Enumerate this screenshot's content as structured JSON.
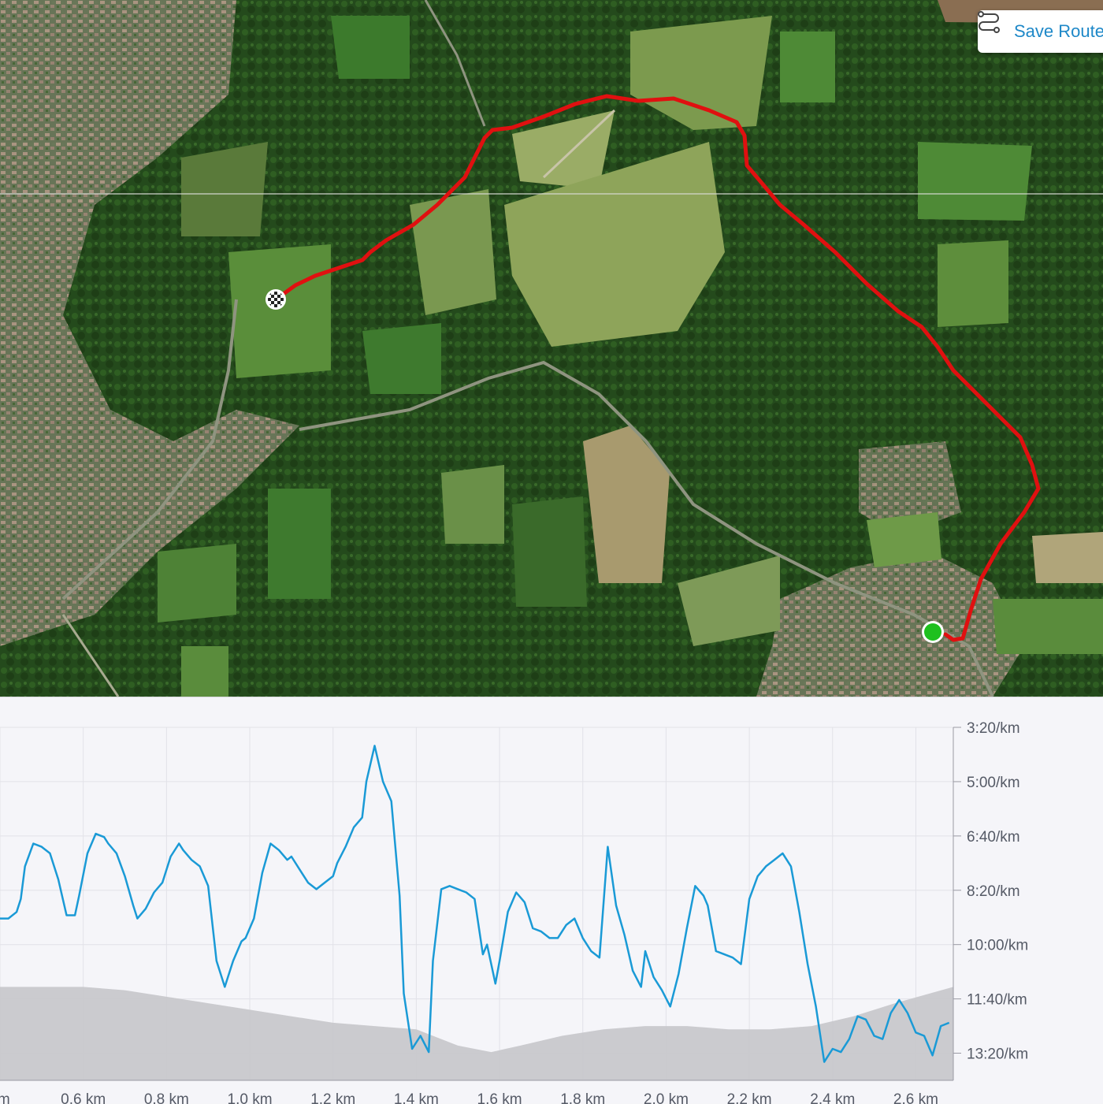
{
  "toolbar": {
    "save_route_label": "Save Route",
    "save_route_icon": "route-icon"
  },
  "map": {
    "marker_finish_icon": "checkered-flag-icon",
    "marker_start_icon": "start-dot-icon",
    "route_color": "#e01010",
    "start_color": "#1ec01e"
  },
  "chart_data": {
    "type": "area",
    "x_unit": "km",
    "x_tick_labels": [
      "km",
      "0.6 km",
      "0.8 km",
      "1.0 km",
      "1.2 km",
      "1.4 km",
      "1.6 km",
      "1.8 km",
      "2.0 km",
      "2.2 km",
      "2.4 km",
      "2.6 km"
    ],
    "x_ticks": [
      0.4,
      0.6,
      0.8,
      1.0,
      1.2,
      1.4,
      1.6,
      1.8,
      2.0,
      2.2,
      2.4,
      2.6
    ],
    "xlim": [
      0.4,
      2.69
    ],
    "y_tick_labels": [
      "3:20/km",
      "5:00/km",
      "6:40/km",
      "8:20/km",
      "10:00/km",
      "11:40/km",
      "13:20/km"
    ],
    "y_ticks_min_per_km": [
      3.333,
      5.0,
      6.667,
      8.333,
      10.0,
      11.667,
      13.333
    ],
    "ylim_min_per_km": [
      3.333,
      14.167
    ],
    "y_inverted": true,
    "pace_color": "#1a9ad6",
    "elevation_color": "#c8c8cc",
    "series": [
      {
        "kind": "pace",
        "x": [
          0.4,
          0.42,
          0.44,
          0.45,
          0.46,
          0.48,
          0.5,
          0.52,
          0.54,
          0.56,
          0.58,
          0.59,
          0.61,
          0.63,
          0.65,
          0.66,
          0.68,
          0.7,
          0.72,
          0.73,
          0.75,
          0.77,
          0.79,
          0.81,
          0.83,
          0.84,
          0.86,
          0.88,
          0.9,
          0.92,
          0.94,
          0.96,
          0.98,
          0.99,
          1.01,
          1.03,
          1.05,
          1.07,
          1.09,
          1.1,
          1.12,
          1.14,
          1.16,
          1.18,
          1.2,
          1.21,
          1.23,
          1.25,
          1.27,
          1.28,
          1.3,
          1.32,
          1.34,
          1.36,
          1.37,
          1.39,
          1.41,
          1.43,
          1.44,
          1.46,
          1.48,
          1.5,
          1.52,
          1.54,
          1.56,
          1.57,
          1.59,
          1.6,
          1.62,
          1.64,
          1.66,
          1.68,
          1.7,
          1.72,
          1.74,
          1.76,
          1.78,
          1.8,
          1.82,
          1.84,
          1.86,
          1.88,
          1.9,
          1.92,
          1.94,
          1.95,
          1.97,
          1.99,
          2.01,
          2.03,
          2.05,
          2.07,
          2.09,
          2.1,
          2.12,
          2.14,
          2.16,
          2.18,
          2.2,
          2.22,
          2.24,
          2.26,
          2.28,
          2.3,
          2.32,
          2.34,
          2.36,
          2.38,
          2.4,
          2.42,
          2.44,
          2.46,
          2.48,
          2.5,
          2.52,
          2.54,
          2.56,
          2.58,
          2.6,
          2.62,
          2.64,
          2.66,
          2.68
        ],
        "y": [
          9.2,
          9.2,
          9.0,
          8.6,
          7.6,
          6.9,
          7.0,
          7.2,
          8.0,
          9.1,
          9.1,
          8.5,
          7.2,
          6.6,
          6.7,
          6.9,
          7.2,
          7.9,
          8.8,
          9.2,
          8.9,
          8.4,
          8.1,
          7.3,
          6.9,
          7.1,
          7.4,
          7.6,
          8.2,
          10.5,
          11.3,
          10.5,
          9.9,
          9.8,
          9.2,
          7.8,
          6.9,
          7.1,
          7.4,
          7.3,
          7.7,
          8.1,
          8.3,
          8.1,
          7.9,
          7.5,
          7.0,
          6.4,
          6.1,
          5.0,
          3.9,
          5.0,
          5.6,
          8.5,
          11.5,
          13.2,
          12.8,
          13.3,
          10.5,
          8.3,
          8.2,
          8.3,
          8.4,
          8.6,
          10.3,
          10.0,
          11.2,
          10.5,
          9.0,
          8.4,
          8.7,
          9.5,
          9.6,
          9.8,
          9.8,
          9.4,
          9.2,
          9.8,
          10.2,
          10.4,
          7.0,
          8.8,
          9.7,
          10.8,
          11.3,
          10.2,
          11.0,
          11.4,
          11.9,
          10.9,
          9.5,
          8.2,
          8.5,
          8.8,
          10.2,
          10.3,
          10.4,
          10.6,
          8.6,
          7.9,
          7.6,
          7.4,
          7.2,
          7.6,
          9.0,
          10.6,
          11.9,
          13.6,
          13.2,
          13.3,
          12.9,
          12.2,
          12.3,
          12.8,
          12.9,
          12.1,
          11.7,
          12.1,
          12.7,
          12.8,
          13.4,
          12.5,
          12.4
        ]
      },
      {
        "kind": "elevation",
        "note_shape": "gray filled area below pace, relative",
        "x": [
          0.4,
          0.5,
          0.6,
          0.7,
          0.8,
          0.9,
          1.0,
          1.1,
          1.2,
          1.3,
          1.4,
          1.5,
          1.58,
          1.65,
          1.75,
          1.85,
          1.95,
          2.05,
          2.15,
          2.25,
          2.35,
          2.45,
          2.55,
          2.69
        ],
        "y": [
          11.3,
          11.3,
          11.3,
          11.4,
          11.6,
          11.8,
          12.0,
          12.2,
          12.4,
          12.5,
          12.6,
          13.1,
          13.3,
          13.1,
          12.8,
          12.6,
          12.5,
          12.5,
          12.6,
          12.6,
          12.5,
          12.2,
          11.8,
          11.3
        ]
      }
    ]
  }
}
